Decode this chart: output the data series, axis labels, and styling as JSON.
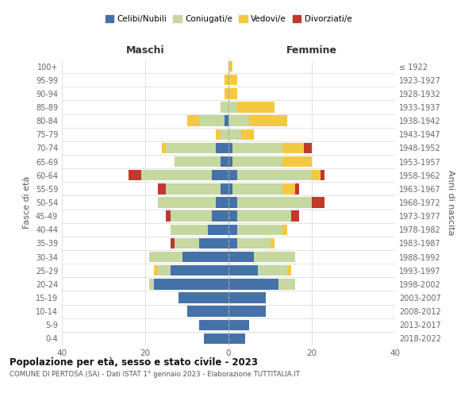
{
  "age_groups": [
    "0-4",
    "5-9",
    "10-14",
    "15-19",
    "20-24",
    "25-29",
    "30-34",
    "35-39",
    "40-44",
    "45-49",
    "50-54",
    "55-59",
    "60-64",
    "65-69",
    "70-74",
    "75-79",
    "80-84",
    "85-89",
    "90-94",
    "95-99",
    "100+"
  ],
  "birth_years": [
    "2018-2022",
    "2013-2017",
    "2008-2012",
    "2003-2007",
    "1998-2002",
    "1993-1997",
    "1988-1992",
    "1983-1987",
    "1978-1982",
    "1973-1977",
    "1968-1972",
    "1963-1967",
    "1958-1962",
    "1953-1957",
    "1948-1952",
    "1943-1947",
    "1938-1942",
    "1933-1937",
    "1928-1932",
    "1923-1927",
    "≤ 1922"
  ],
  "males": {
    "celibi": [
      6,
      7,
      10,
      12,
      18,
      14,
      11,
      7,
      5,
      4,
      3,
      2,
      4,
      2,
      3,
      0,
      1,
      0,
      0,
      0,
      0
    ],
    "coniugati": [
      0,
      0,
      0,
      0,
      1,
      3,
      8,
      6,
      9,
      10,
      14,
      13,
      17,
      11,
      12,
      2,
      6,
      2,
      0,
      0,
      0
    ],
    "vedovi": [
      0,
      0,
      0,
      0,
      0,
      1,
      0,
      0,
      0,
      0,
      0,
      0,
      0,
      0,
      1,
      1,
      3,
      0,
      1,
      1,
      0
    ],
    "divorziati": [
      0,
      0,
      0,
      0,
      0,
      0,
      0,
      1,
      0,
      1,
      0,
      2,
      3,
      0,
      0,
      0,
      0,
      0,
      0,
      0,
      0
    ]
  },
  "females": {
    "nubili": [
      4,
      5,
      9,
      9,
      12,
      7,
      6,
      2,
      2,
      2,
      2,
      1,
      2,
      1,
      1,
      0,
      0,
      0,
      0,
      0,
      0
    ],
    "coniugate": [
      0,
      0,
      0,
      0,
      4,
      7,
      10,
      8,
      11,
      13,
      18,
      12,
      18,
      12,
      12,
      3,
      5,
      2,
      0,
      0,
      0
    ],
    "vedove": [
      0,
      0,
      0,
      0,
      0,
      1,
      0,
      1,
      1,
      0,
      0,
      3,
      2,
      7,
      5,
      3,
      9,
      9,
      2,
      2,
      1
    ],
    "divorziate": [
      0,
      0,
      0,
      0,
      0,
      0,
      0,
      0,
      0,
      2,
      3,
      1,
      1,
      0,
      2,
      0,
      0,
      0,
      0,
      0,
      0
    ]
  },
  "colors": {
    "celibi": "#4472a8",
    "coniugati": "#c5d8a0",
    "vedovi": "#f5c842",
    "divorziati": "#c0392b"
  },
  "xlim": 40,
  "title": "Popolazione per età, sesso e stato civile - 2023",
  "subtitle": "COMUNE DI PERTOSA (SA) - Dati ISTAT 1° gennaio 2023 - Elaborazione TUTTITALIA.IT",
  "ylabel_left": "Fasce di età",
  "ylabel_right": "Anni di nascita",
  "xlabel_left": "Maschi",
  "xlabel_right": "Femmine"
}
